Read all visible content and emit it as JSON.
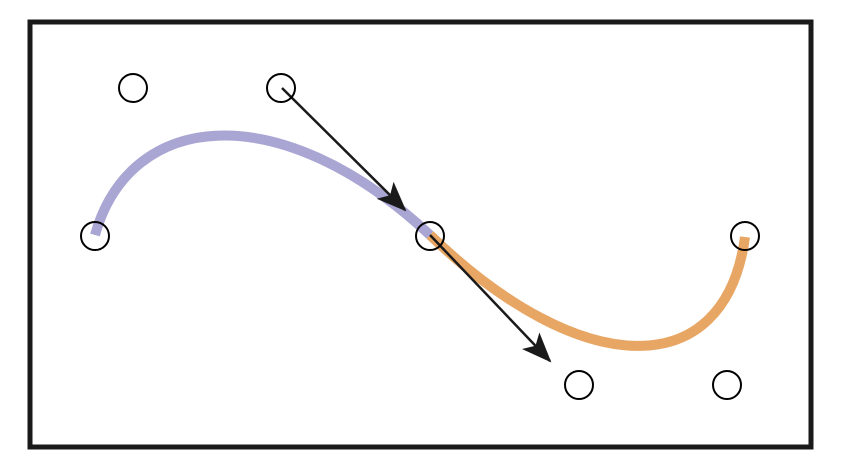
{
  "diagram": {
    "type": "piecewise-bezier-curve",
    "segments": [
      {
        "name": "first-segment",
        "color": "#a9a6d3"
      },
      {
        "name": "second-segment",
        "color": "#e8a664"
      }
    ],
    "control_point_count": 7,
    "tangent_arrow_count": 2,
    "colors": {
      "frame": "#1a1a1a",
      "control_point_stroke": "#000000",
      "control_point_fill": "#ffffff",
      "arrow": "#1a1a1a"
    },
    "icons": [
      "control-point-icon",
      "tangent-arrow-icon"
    ]
  }
}
